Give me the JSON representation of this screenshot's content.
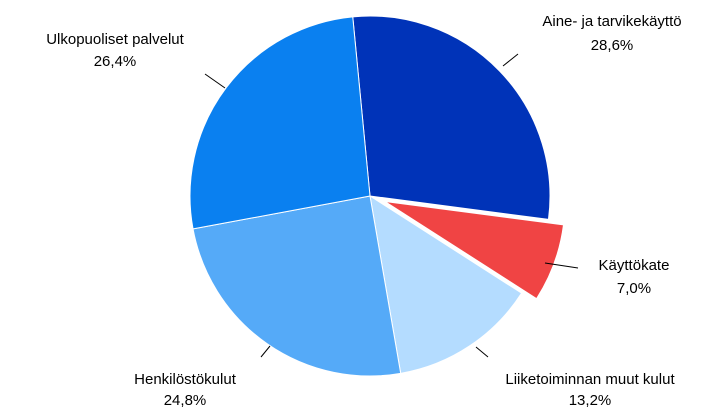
{
  "chart_data": {
    "type": "pie",
    "categories": [
      "Aine- ja tarvikekäyttö",
      "Käyttökate",
      "Liiketoiminnan muut kulut",
      "Henkilöstökulut",
      "Ulkopuoliset palvelut"
    ],
    "values": [
      28.6,
      7.0,
      13.2,
      24.8,
      26.4
    ],
    "value_labels": [
      "28,6%",
      "7,0%",
      "13,2%",
      "24,8%",
      "26,4%"
    ],
    "colors": [
      "#0033b8",
      "#f04444",
      "#b4dcff",
      "#55aaf8",
      "#0a80f0"
    ],
    "exploded": [
      "Käyttökate"
    ]
  }
}
